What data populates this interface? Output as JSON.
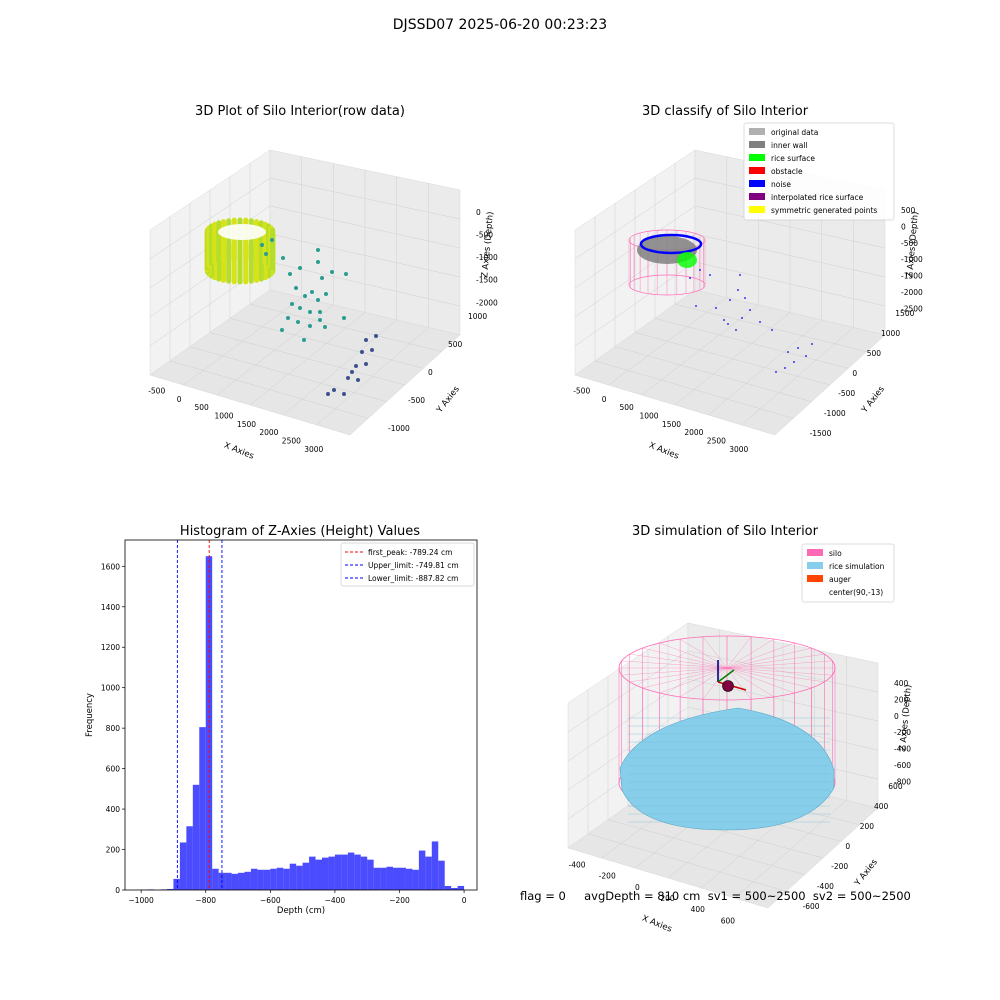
{
  "figure_title": "DJSSD07 2025-06-20 00:23:23",
  "panels": {
    "raw": {
      "title": "3D Plot of Silo Interior(row data)",
      "xlabel": "X Axies",
      "ylabel": "Y Axies",
      "zlabel": "Z Axies (Depth)",
      "xticks": [
        "-500",
        "0",
        "500",
        "1000",
        "1500",
        "2000",
        "2500",
        "3000"
      ],
      "yticks": [
        "1000",
        "500",
        "0",
        "-500",
        "-1000"
      ],
      "zticks": [
        "0",
        "-500",
        "-1000",
        "-1500",
        "-2000"
      ]
    },
    "classify": {
      "title": "3D classify of Silo Interior",
      "xlabel": "X Axies",
      "ylabel": "Y Axies",
      "zlabel": "Z Axies (Depth)",
      "xticks": [
        "-500",
        "0",
        "500",
        "1000",
        "1500",
        "2000",
        "2500",
        "3000"
      ],
      "yticks": [
        "1500",
        "1000",
        "500",
        "0",
        "-500",
        "-1000",
        "-1500"
      ],
      "zticks": [
        "500",
        "0",
        "-500",
        "-1000",
        "-1500",
        "-2000",
        "-2500"
      ],
      "legend": [
        {
          "label": "original data",
          "color": "#b0b0b0"
        },
        {
          "label": "inner wall",
          "color": "#808080"
        },
        {
          "label": "rice surface",
          "color": "#00ff00"
        },
        {
          "label": "obstacle",
          "color": "#ff0000"
        },
        {
          "label": "noise",
          "color": "#0000ff"
        },
        {
          "label": "interpolated rice surface",
          "color": "#800080"
        },
        {
          "label": "symmetric generated points",
          "color": "#ffff00"
        }
      ]
    },
    "simulation": {
      "title": "3D simulation of Silo Interior",
      "xlabel": "X Axies",
      "ylabel": "Y Axies",
      "zlabel": "Z Axies (Depth)",
      "xticks": [
        "-400",
        "-200",
        "0",
        "200",
        "400",
        "600"
      ],
      "yticks": [
        "600",
        "400",
        "200",
        "0",
        "-200",
        "-400",
        "-600"
      ],
      "zticks": [
        "400",
        "200",
        "0",
        "-200",
        "-400",
        "-600",
        "-800"
      ],
      "legend": [
        {
          "label": "silo",
          "color": "#ff69b4"
        },
        {
          "label": "rice simulation",
          "color": "#87ceeb"
        },
        {
          "label": "auger",
          "color": "#ff4500"
        },
        {
          "label": "center(90,-13)",
          "color": ""
        }
      ]
    }
  },
  "status_line": "flag = 0     avgDepth = 810 cm  sv1 = 500~2500  sv2 = 500~2500",
  "chart_data": [
    {
      "type": "histogram",
      "title": "Histogram of Z-Axies (Height) Values",
      "xlabel": "Depth (cm)",
      "ylabel": "Frequency",
      "xlim": [
        -1050,
        40
      ],
      "ylim": [
        0,
        1730
      ],
      "xticks": [
        -1000,
        -800,
        -600,
        -400,
        -200,
        0
      ],
      "yticks": [
        0,
        200,
        400,
        600,
        800,
        1000,
        1200,
        1400,
        1600
      ],
      "bin_width": 20,
      "bins": [
        {
          "x0": -1000,
          "count": 2
        },
        {
          "x0": -980,
          "count": 3
        },
        {
          "x0": -940,
          "count": 3
        },
        {
          "x0": -920,
          "count": 5
        },
        {
          "x0": -900,
          "count": 55
        },
        {
          "x0": -880,
          "count": 235
        },
        {
          "x0": -860,
          "count": 315
        },
        {
          "x0": -840,
          "count": 520
        },
        {
          "x0": -820,
          "count": 805
        },
        {
          "x0": -800,
          "count": 1650
        },
        {
          "x0": -780,
          "count": 105
        },
        {
          "x0": -760,
          "count": 85
        },
        {
          "x0": -740,
          "count": 85
        },
        {
          "x0": -720,
          "count": 80
        },
        {
          "x0": -700,
          "count": 85
        },
        {
          "x0": -680,
          "count": 90
        },
        {
          "x0": -660,
          "count": 105
        },
        {
          "x0": -640,
          "count": 100
        },
        {
          "x0": -620,
          "count": 100
        },
        {
          "x0": -600,
          "count": 105
        },
        {
          "x0": -580,
          "count": 110
        },
        {
          "x0": -560,
          "count": 105
        },
        {
          "x0": -540,
          "count": 130
        },
        {
          "x0": -520,
          "count": 120
        },
        {
          "x0": -500,
          "count": 135
        },
        {
          "x0": -480,
          "count": 165
        },
        {
          "x0": -460,
          "count": 150
        },
        {
          "x0": -440,
          "count": 160
        },
        {
          "x0": -420,
          "count": 165
        },
        {
          "x0": -400,
          "count": 175
        },
        {
          "x0": -380,
          "count": 175
        },
        {
          "x0": -360,
          "count": 185
        },
        {
          "x0": -340,
          "count": 175
        },
        {
          "x0": -320,
          "count": 165
        },
        {
          "x0": -300,
          "count": 150
        },
        {
          "x0": -280,
          "count": 110
        },
        {
          "x0": -260,
          "count": 110
        },
        {
          "x0": -240,
          "count": 115
        },
        {
          "x0": -220,
          "count": 110
        },
        {
          "x0": -200,
          "count": 110
        },
        {
          "x0": -180,
          "count": 105
        },
        {
          "x0": -160,
          "count": 100
        },
        {
          "x0": -140,
          "count": 195
        },
        {
          "x0": -120,
          "count": 165
        },
        {
          "x0": -100,
          "count": 240
        },
        {
          "x0": -80,
          "count": 145
        },
        {
          "x0": -60,
          "count": 20
        },
        {
          "x0": -40,
          "count": 10
        },
        {
          "x0": -20,
          "count": 20
        }
      ],
      "vlines": [
        {
          "label": "first_peak: -789.24 cm",
          "x": -789.24,
          "color": "#ff0000"
        },
        {
          "label": "Upper_limit: -749.81 cm",
          "x": -749.81,
          "color": "#0000ff"
        },
        {
          "label": "Lower_limit: -887.82 cm",
          "x": -887.82,
          "color": "#0000ff"
        }
      ],
      "legend_position": "upper right",
      "bar_color": "#0000ff"
    }
  ]
}
